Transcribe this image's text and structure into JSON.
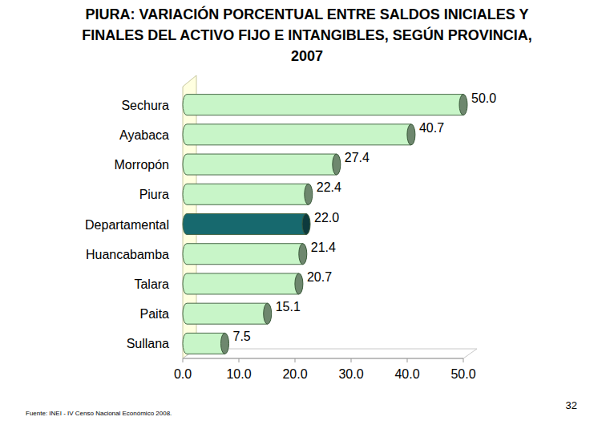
{
  "chart_data": {
    "type": "bar",
    "orientation": "horizontal",
    "title": "PIURA: VARIACIÓN PORCENTUAL ENTRE SALDOS INICIALES Y\nFINALES DEL ACTIVO FIJO E INTANGIBLES, SEGÚN PROVINCIA,\n2007",
    "categories": [
      "Sechura",
      "Ayabaca",
      "Morropón",
      "Piura",
      "Departamental",
      "Huancabamba",
      "Talara",
      "Paita",
      "Sullana"
    ],
    "values": [
      50.0,
      40.7,
      27.4,
      22.4,
      22.0,
      21.4,
      20.7,
      15.1,
      7.5
    ],
    "value_labels": [
      "50.0",
      "40.7",
      "27.4",
      "22.4",
      "22.0",
      "21.4",
      "20.7",
      "15.1",
      "7.5"
    ],
    "colors": [
      "#c8f5c8",
      "#c8f5c8",
      "#c8f5c8",
      "#c8f5c8",
      "#17696e",
      "#c8f5c8",
      "#c8f5c8",
      "#c8f5c8",
      "#c8f5c8"
    ],
    "xlim": [
      0,
      50
    ],
    "xticks": [
      {
        "value": 0,
        "label": "0.0"
      },
      {
        "value": 10,
        "label": "10.0"
      },
      {
        "value": 20,
        "label": "20.0"
      },
      {
        "value": 30,
        "label": "30.0"
      },
      {
        "value": 40,
        "label": "40.0"
      },
      {
        "value": 50,
        "label": "50.0"
      }
    ],
    "grid": false,
    "data_labels": true,
    "annotations": [
      "Fuente: INEI - IV Censo Nacional Económico 2008.",
      "32"
    ]
  }
}
